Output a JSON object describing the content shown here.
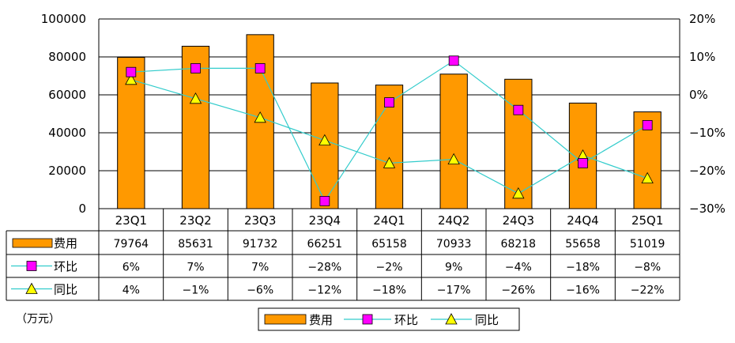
{
  "chart_data": {
    "type": "bar",
    "categories": [
      "23Q1",
      "23Q2",
      "23Q3",
      "23Q4",
      "24Q1",
      "24Q2",
      "24Q3",
      "24Q4",
      "25Q1"
    ],
    "series": [
      {
        "name": "费用",
        "type": "bar",
        "axis": "left",
        "color": "#FF9900",
        "values": [
          79764,
          85631,
          91732,
          66251,
          65158,
          70933,
          68218,
          55658,
          51019
        ],
        "labels": [
          "79764",
          "85631",
          "91732",
          "66251",
          "65158",
          "70933",
          "68218",
          "55658",
          "51019"
        ]
      },
      {
        "name": "环比",
        "type": "line",
        "axis": "right",
        "color": "#33CCCC",
        "marker": "square",
        "marker_color": "#FF00FF",
        "values": [
          6,
          7,
          7,
          -28,
          -2,
          9,
          -4,
          -18,
          -8
        ],
        "labels": [
          "6%",
          "7%",
          "7%",
          "−28%",
          "−2%",
          "9%",
          "−4%",
          "−18%",
          "−8%"
        ]
      },
      {
        "name": "同比",
        "type": "line",
        "axis": "right",
        "color": "#33CCCC",
        "marker": "triangle",
        "marker_color": "#FFFF00",
        "values": [
          4,
          -1,
          -6,
          -12,
          -18,
          -17,
          -26,
          -16,
          -22
        ],
        "labels": [
          "4%",
          "−1%",
          "−6%",
          "−12%",
          "−18%",
          "−17%",
          "−26%",
          "−16%",
          "−22%"
        ]
      }
    ],
    "y_left": {
      "min": 0,
      "max": 100000,
      "step": 20000,
      "ticks": [
        "0",
        "20000",
        "40000",
        "60000",
        "80000",
        "100000"
      ]
    },
    "y_right": {
      "min": -30,
      "max": 20,
      "step": 10,
      "ticks": [
        "−30%",
        "−20%",
        "−10%",
        "0%",
        "10%",
        "20%"
      ]
    },
    "unit_label": "（万元）",
    "grid": true,
    "legend_position": "bottom",
    "data_table": true
  }
}
